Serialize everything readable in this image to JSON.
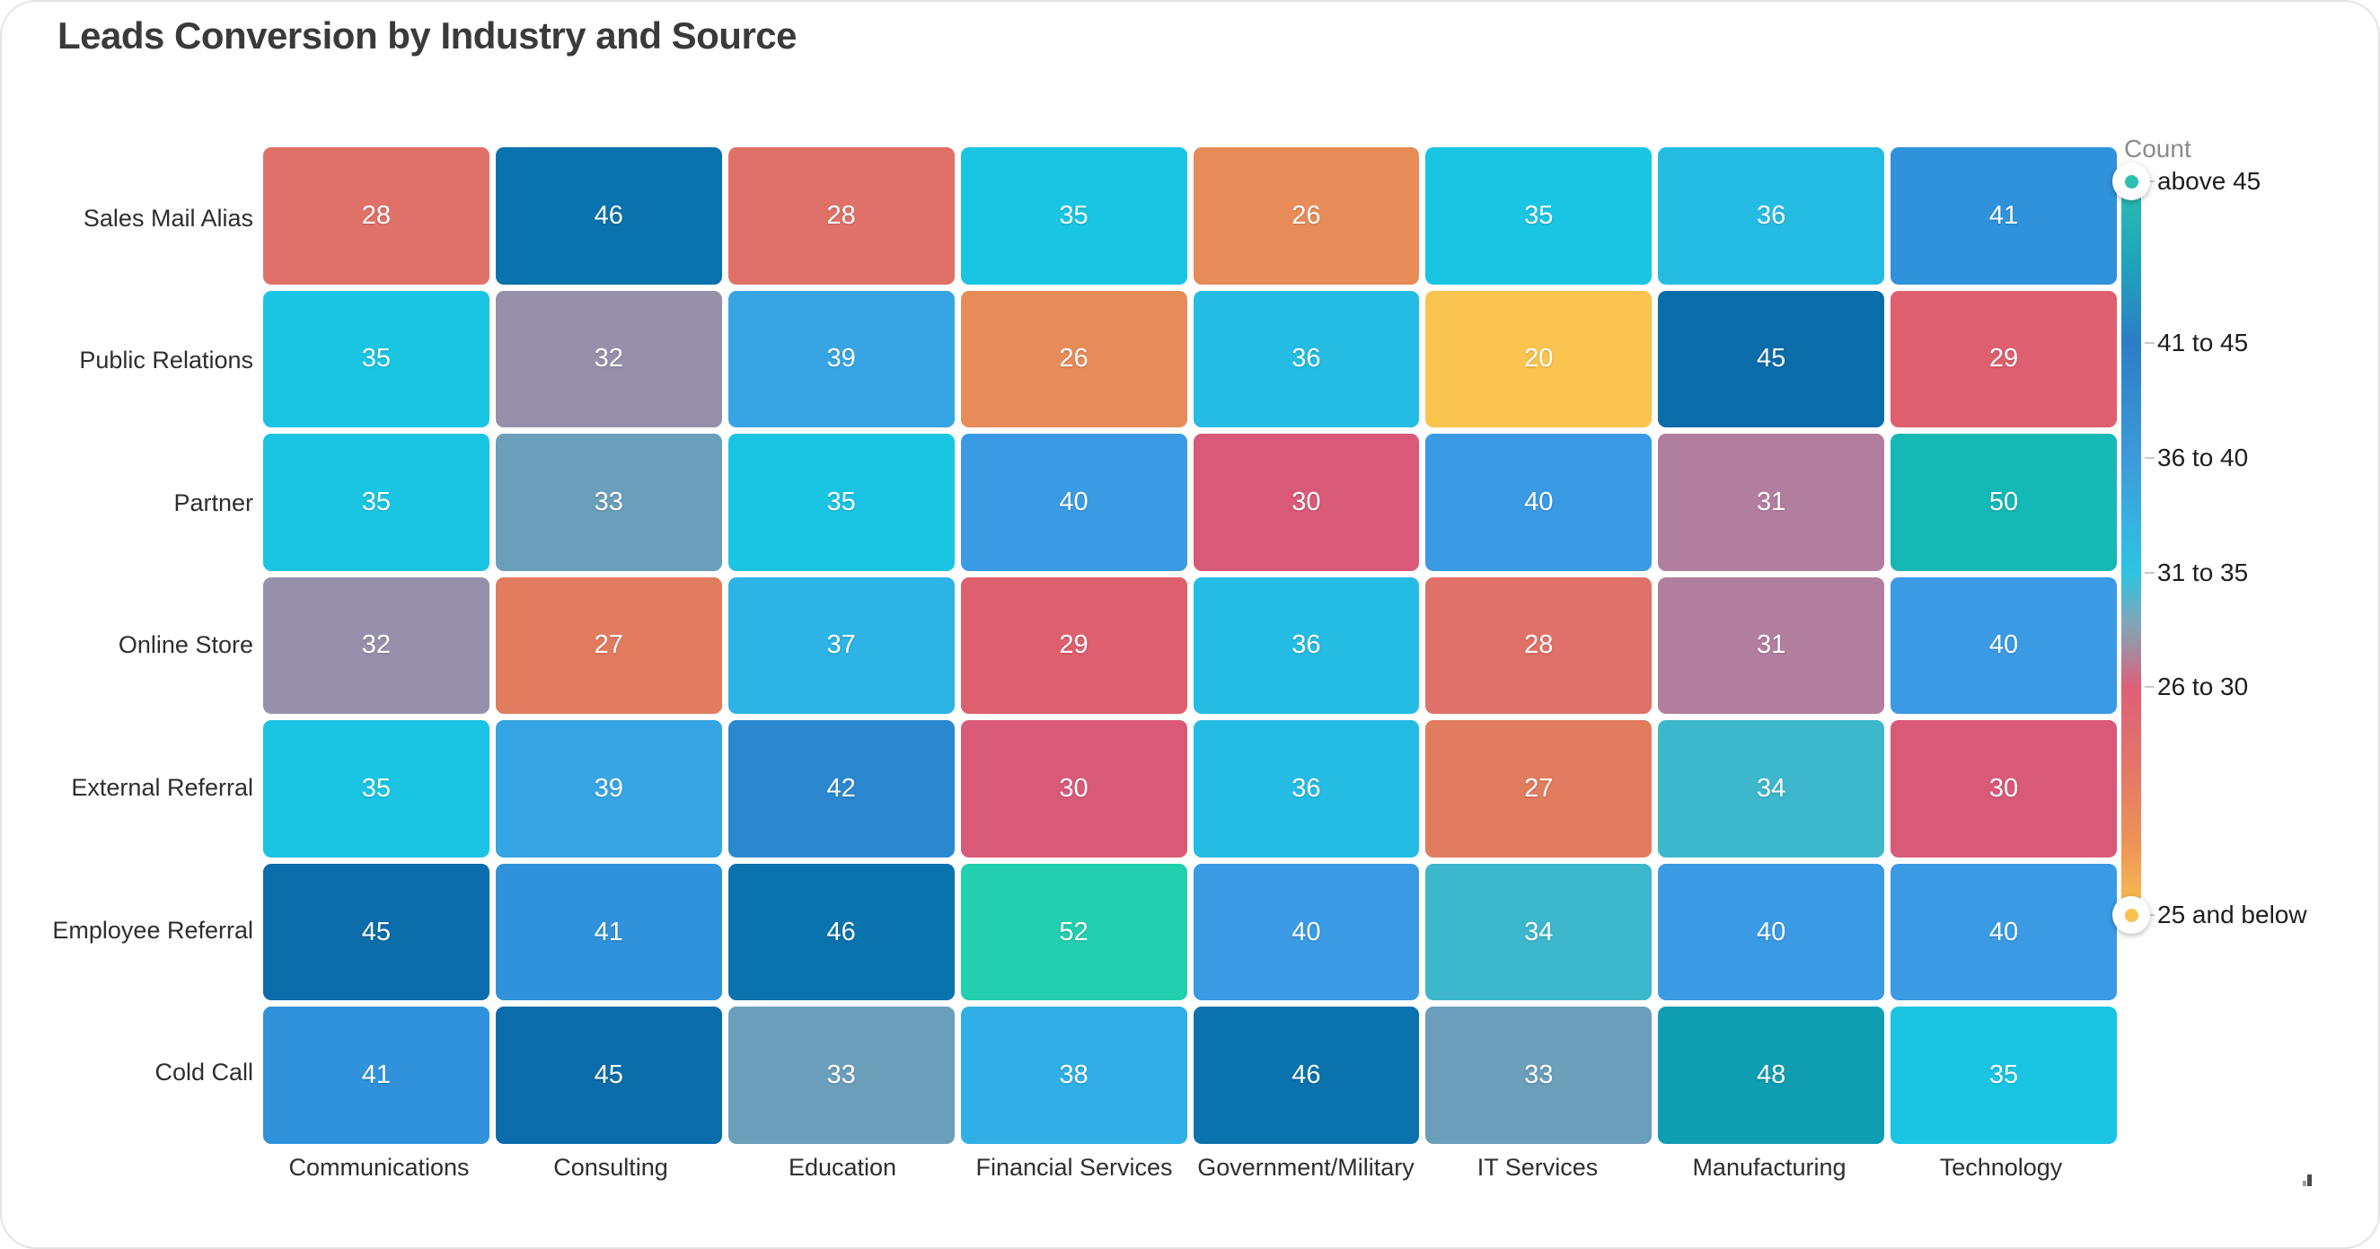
{
  "page": {
    "title": "Leads Conversion by Industry and Source"
  },
  "chart_data": {
    "type": "heatmap",
    "title": "Leads Conversion by Industry and Source",
    "x_categories": [
      "Communications",
      "Consulting",
      "Education",
      "Financial Services",
      "Government/Military",
      "IT Services",
      "Manufacturing",
      "Technology"
    ],
    "y_categories": [
      "Sales Mail Alias",
      "Public Relations",
      "Partner",
      "Online Store",
      "External Referral",
      "Employee Referral",
      "Cold Call"
    ],
    "values": [
      [
        28,
        46,
        28,
        35,
        26,
        35,
        36,
        41
      ],
      [
        35,
        32,
        39,
        26,
        36,
        20,
        45,
        29
      ],
      [
        35,
        33,
        35,
        40,
        30,
        40,
        31,
        50
      ],
      [
        32,
        27,
        37,
        29,
        36,
        28,
        31,
        40
      ],
      [
        35,
        39,
        42,
        30,
        36,
        27,
        34,
        30
      ],
      [
        45,
        41,
        46,
        52,
        40,
        34,
        40,
        40
      ],
      [
        41,
        45,
        33,
        38,
        46,
        33,
        48,
        35
      ]
    ],
    "cell_text_color": "#ffffff",
    "value_colors": {
      "20": "#fbc44e",
      "26": "#e78b58",
      "27": "#e17c5e",
      "28": "#e07168",
      "29": "#de5f6d",
      "30": "#d95a78",
      "31": "#b27e9e",
      "32": "#9790ab",
      "33": "#6b9eba",
      "34": "#3db7cc",
      "35": "#19c5e3",
      "36": "#25bce4",
      "37": "#2db3e4",
      "38": "#2fafe5",
      "39": "#37a5e3",
      "40": "#3a9ae4",
      "41": "#3092da",
      "42": "#2b88cf",
      "45": "#0b6caa",
      "46": "#0a72ac",
      "48": "#0f9db2",
      "50": "#14b8b4",
      "52": "#22cfae"
    },
    "legend": {
      "title": "Count",
      "ticks": [
        {
          "label": "above 45",
          "pos": 0
        },
        {
          "label": "41 to 45",
          "pos": 22
        },
        {
          "label": "36 to 40",
          "pos": 37.7
        },
        {
          "label": "31 to 35",
          "pos": 53.4
        },
        {
          "label": "26 to 30",
          "pos": 68.9
        },
        {
          "label": "25 and below",
          "pos": 100
        }
      ],
      "gradient_stops": [
        {
          "color": "#2cc0b0",
          "pos": 0
        },
        {
          "color": "#1fa4bb",
          "pos": 11
        },
        {
          "color": "#2c7ec6",
          "pos": 22
        },
        {
          "color": "#3d9ad8",
          "pos": 37.7
        },
        {
          "color": "#35b3e2",
          "pos": 47
        },
        {
          "color": "#2cc4e0",
          "pos": 53.4
        },
        {
          "color": "#7fa7b9",
          "pos": 60
        },
        {
          "color": "#9b93a7",
          "pos": 63
        },
        {
          "color": "#dd6078",
          "pos": 68.9
        },
        {
          "color": "#e3746a",
          "pos": 79
        },
        {
          "color": "#ee9257",
          "pos": 90
        },
        {
          "color": "#f9c24e",
          "pos": 100
        }
      ],
      "top_marker_color": "#2cbfb2",
      "bottom_marker_color": "#f9c24f"
    }
  }
}
